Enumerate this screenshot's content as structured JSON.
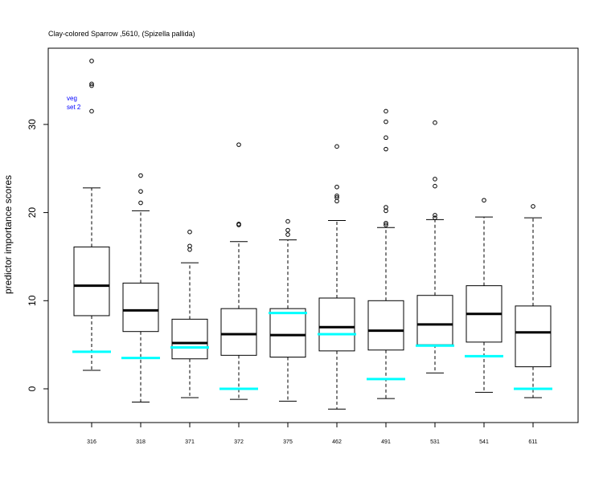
{
  "chart_data": {
    "type": "boxplot",
    "title": "Clay-colored Sparrow ,5610, (Spizella pallida)",
    "xlabel": "",
    "ylabel": "predictor importance scores",
    "ylim": [
      -4,
      40
    ],
    "yticks": [
      0,
      10,
      20,
      30
    ],
    "grid": false,
    "legend": {
      "lines": [
        "veg",
        "set 2"
      ],
      "color": "#0000ff",
      "placement": "top-left"
    },
    "reference_color": "#00ffff",
    "categories": [
      "316",
      "318",
      "371",
      "372",
      "375",
      "462",
      "491",
      "531",
      "541",
      "611"
    ],
    "boxes": [
      {
        "category": "316",
        "whisker_low": 2.1,
        "q1": 8.3,
        "median": 11.7,
        "q3": 16.1,
        "whisker_high": 22.8,
        "outliers": [
          37.2,
          34.6,
          34.4,
          31.5
        ],
        "reference": 4.2
      },
      {
        "category": "318",
        "whisker_low": -1.5,
        "q1": 6.5,
        "median": 8.9,
        "q3": 12.0,
        "whisker_high": 20.2,
        "outliers": [
          24.2,
          22.4,
          21.1
        ],
        "reference": 3.5
      },
      {
        "category": "371",
        "whisker_low": -1.0,
        "q1": 3.4,
        "median": 5.2,
        "q3": 7.9,
        "whisker_high": 14.3,
        "outliers": [
          17.8,
          16.2,
          15.8
        ],
        "reference": 4.7
      },
      {
        "category": "372",
        "whisker_low": -1.2,
        "q1": 3.8,
        "median": 6.2,
        "q3": 9.1,
        "whisker_high": 16.7,
        "outliers": [
          27.7,
          18.7,
          18.6
        ],
        "reference": 0.0
      },
      {
        "category": "375",
        "whisker_low": -1.4,
        "q1": 3.6,
        "median": 6.1,
        "q3": 9.1,
        "whisker_high": 16.9,
        "outliers": [
          19.0,
          18.0,
          17.5
        ],
        "reference": 8.6
      },
      {
        "category": "462",
        "whisker_low": -2.3,
        "q1": 4.3,
        "median": 7.0,
        "q3": 10.3,
        "whisker_high": 19.1,
        "outliers": [
          27.5,
          22.9,
          21.9,
          21.7,
          21.3
        ],
        "reference": 6.2
      },
      {
        "category": "491",
        "whisker_low": -1.1,
        "q1": 4.4,
        "median": 6.6,
        "q3": 10.0,
        "whisker_high": 18.3,
        "outliers": [
          31.5,
          30.3,
          28.5,
          27.2,
          20.6,
          20.2,
          18.8,
          18.6
        ],
        "reference": 1.1
      },
      {
        "category": "531",
        "whisker_low": 1.8,
        "q1": 5.0,
        "median": 7.3,
        "q3": 10.6,
        "whisker_high": 19.2,
        "outliers": [
          30.2,
          23.8,
          23.0,
          19.7,
          19.4
        ],
        "reference": 4.9
      },
      {
        "category": "541",
        "whisker_low": -0.4,
        "q1": 5.3,
        "median": 8.5,
        "q3": 11.7,
        "whisker_high": 19.5,
        "outliers": [
          21.4
        ],
        "reference": 3.7
      },
      {
        "category": "611",
        "whisker_low": -1.0,
        "q1": 2.5,
        "median": 6.4,
        "q3": 9.4,
        "whisker_high": 19.4,
        "outliers": [
          20.7
        ],
        "reference": 0.0
      }
    ]
  }
}
